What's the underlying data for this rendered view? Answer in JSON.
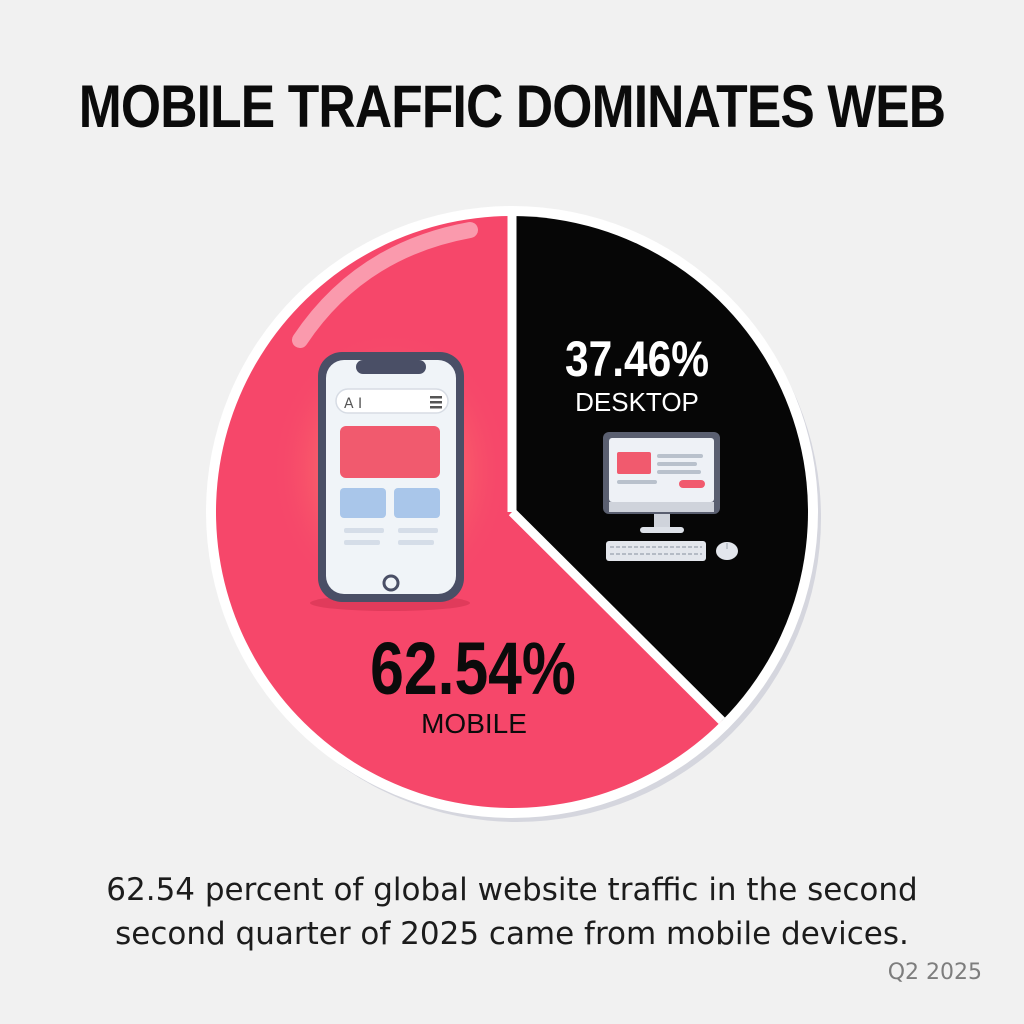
{
  "title": "MOBILE TRAFFIC DOMINATES WEB",
  "chart_data": {
    "type": "pie",
    "slices": [
      {
        "label": "MOBILE",
        "value": 62.54,
        "display": "62.54%",
        "color": "#f6476a"
      },
      {
        "label": "DESKTOP",
        "value": 37.46,
        "display": "37.46%",
        "color": "#060606"
      }
    ]
  },
  "icons": {
    "mobile": "smartphone-icon",
    "desktop": "desktop-computer-icon",
    "phone_search_text": "A I"
  },
  "caption_line1": "62.54 percent of global website traffic in the second",
  "caption_line2": "second quarter of 2025 came from mobile devices.",
  "period": "Q2 2025"
}
